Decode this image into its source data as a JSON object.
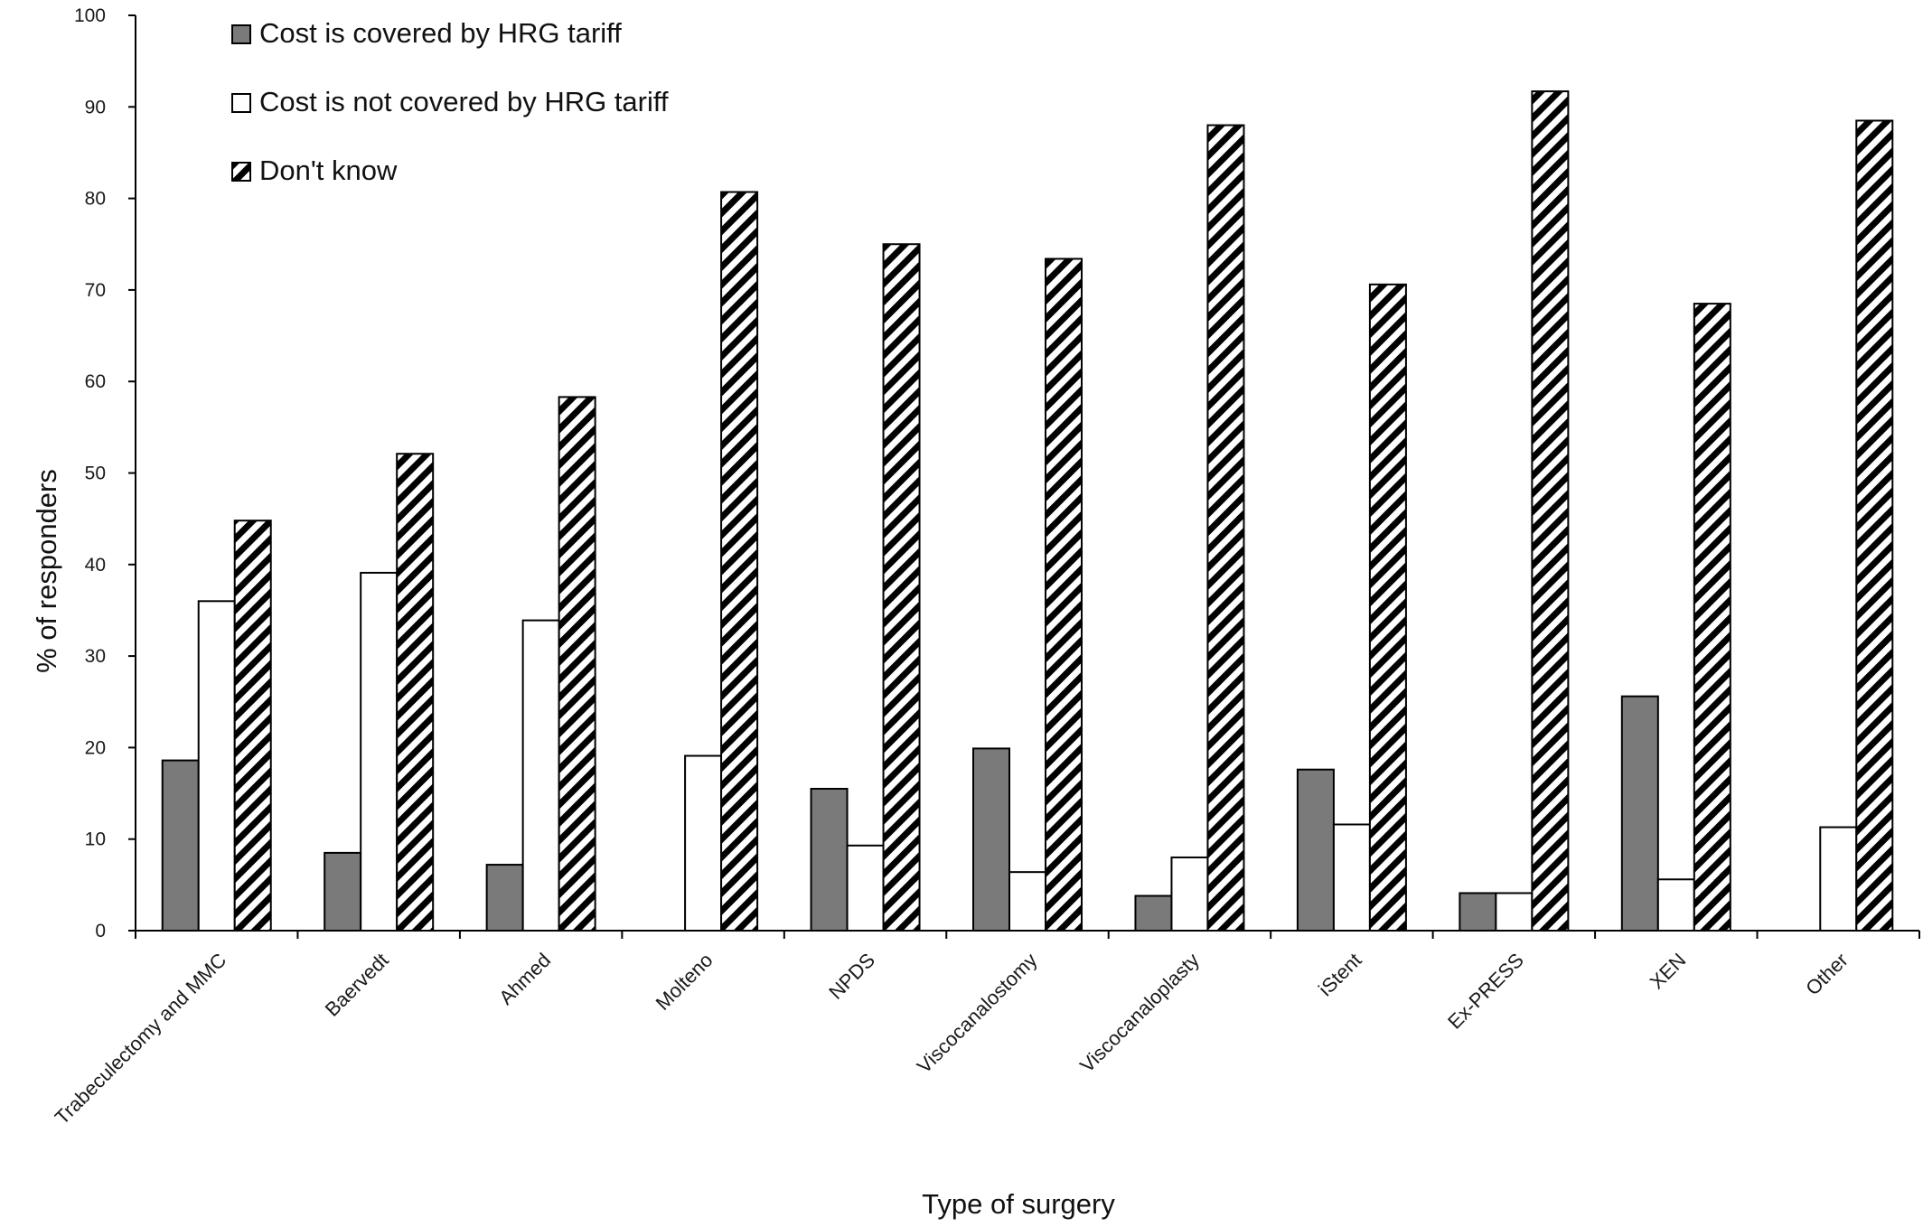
{
  "chart_data": {
    "type": "bar",
    "title": "",
    "xlabel": "Type of surgery",
    "ylabel": "% of responders",
    "ylim": [
      0,
      100
    ],
    "yticks": [
      0,
      10,
      20,
      30,
      40,
      50,
      60,
      70,
      80,
      90,
      100
    ],
    "grid": false,
    "legend_position": "top-left",
    "categories": [
      "Trabeculectomy and MMC",
      "Baervedt",
      "Ahmed",
      "Molteno",
      "NPDS",
      "Viscocanalostomy",
      "Viscocanaloplasty",
      "iStent",
      "Ex-PRESS",
      "XEN",
      "Other"
    ],
    "series": [
      {
        "name": "Cost is covered by HRG tariff",
        "fill": "solid",
        "color": "#7a7a7a",
        "values": [
          18.6,
          8.5,
          7.2,
          0,
          15.5,
          19.9,
          3.8,
          17.6,
          4.1,
          25.6,
          0
        ]
      },
      {
        "name": "Cost is not covered by HRG tariff",
        "fill": "empty",
        "color": "#ffffff",
        "values": [
          36.0,
          39.1,
          33.9,
          19.1,
          9.3,
          6.4,
          8.0,
          11.6,
          4.1,
          5.6,
          11.3
        ]
      },
      {
        "name": "Don't know",
        "fill": "hatched",
        "color": "#000000",
        "values": [
          44.8,
          52.1,
          58.3,
          80.7,
          75.0,
          73.4,
          88.0,
          70.6,
          91.7,
          68.5,
          88.5
        ]
      }
    ]
  }
}
